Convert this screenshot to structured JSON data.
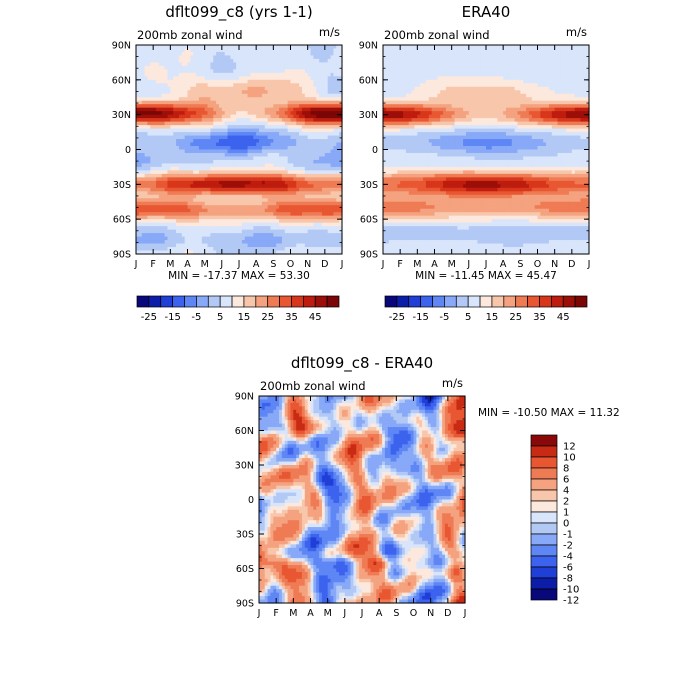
{
  "chart_data": [
    {
      "type": "heatmap",
      "title": "dflt099_c8 (yrs 1-1)",
      "subtitle": "200mb zonal wind",
      "units": "m/s",
      "x_ticks": [
        "J",
        "F",
        "M",
        "A",
        "M",
        "J",
        "J",
        "A",
        "S",
        "O",
        "N",
        "D",
        "J"
      ],
      "y_ticks": [
        "90N",
        "60N",
        "30N",
        "0",
        "30S",
        "60S",
        "90S"
      ],
      "stats": "MIN = -17.37  MAX =   53.30",
      "colorbar_ticks": [
        "-25",
        "-15",
        "-5",
        "5",
        "15",
        "25",
        "35",
        "45"
      ],
      "levels": [
        -30,
        -25,
        -20,
        -15,
        -10,
        -5,
        0,
        5,
        10,
        15,
        20,
        25,
        30,
        35,
        40,
        45,
        50
      ],
      "features": [
        {
          "lat": 30,
          "month": 0.3,
          "value": 53.3
        },
        {
          "lat": 30,
          "month": 11.5,
          "value": 45
        },
        {
          "lat": -35,
          "month": 7,
          "value": 42
        },
        {
          "lat": 5,
          "month": 7.5,
          "value": -17.4
        }
      ]
    },
    {
      "type": "heatmap",
      "title": "ERA40",
      "subtitle": "200mb zonal wind",
      "units": "m/s",
      "x_ticks": [
        "J",
        "F",
        "M",
        "A",
        "M",
        "J",
        "J",
        "A",
        "S",
        "O",
        "N",
        "D",
        "J"
      ],
      "y_ticks": [
        "90N",
        "60N",
        "30N",
        "0",
        "30S",
        "60S",
        "90S"
      ],
      "stats": "MIN = -11.45  MAX =   45.47",
      "colorbar_ticks": [
        "-25",
        "-15",
        "-5",
        "5",
        "15",
        "25",
        "35",
        "45"
      ],
      "levels": [
        -30,
        -25,
        -20,
        -15,
        -10,
        -5,
        0,
        5,
        10,
        15,
        20,
        25,
        30,
        35,
        40,
        45,
        50
      ],
      "features": [
        {
          "lat": 30,
          "month": 0.5,
          "value": 45.5
        },
        {
          "lat": -35,
          "month": 6.5,
          "value": 40
        },
        {
          "lat": 5,
          "month": 7.5,
          "value": -11.5
        }
      ]
    },
    {
      "type": "heatmap",
      "title": "dflt099_c8 - ERA40",
      "subtitle": "200mb zonal wind",
      "units": "m/s",
      "x_ticks": [
        "J",
        "F",
        "M",
        "A",
        "M",
        "J",
        "J",
        "A",
        "S",
        "O",
        "N",
        "D",
        "J"
      ],
      "y_ticks": [
        "90N",
        "60N",
        "30N",
        "0",
        "30S",
        "60S",
        "90S"
      ],
      "stats": "MIN = -10.50  MAX =  11.32",
      "colorbar_ticks": [
        "12",
        "10",
        "8",
        "6",
        "4",
        "2",
        "1",
        "0",
        "-1",
        "-2",
        "-4",
        "-6",
        "-8",
        "-10",
        "-12"
      ],
      "levels": [
        -12,
        -10,
        -8,
        -6,
        -4,
        -2,
        -1,
        0,
        1,
        2,
        4,
        6,
        8,
        10,
        12
      ]
    }
  ],
  "colors": {
    "blue_to_red": [
      "#08087a",
      "#0c1ea8",
      "#1f3fd6",
      "#3c63ee",
      "#5e86f5",
      "#88a9f7",
      "#b3c9f5",
      "#d9e5fb",
      "#fce8dc",
      "#f8c6aa",
      "#f4a27f",
      "#ef7b55",
      "#e85632",
      "#d8361b",
      "#bd1c0e",
      "#9c0e08",
      "#7a0606"
    ],
    "diff": [
      "#08087a",
      "#0c1ea8",
      "#1f3fd6",
      "#3c63ee",
      "#5e86f5",
      "#88a9f7",
      "#b3c9f5",
      "#d9e5fb",
      "#fce8dc",
      "#f8c6aa",
      "#f4a27f",
      "#ef7b55",
      "#e85632",
      "#c82b14",
      "#8a0808"
    ]
  }
}
